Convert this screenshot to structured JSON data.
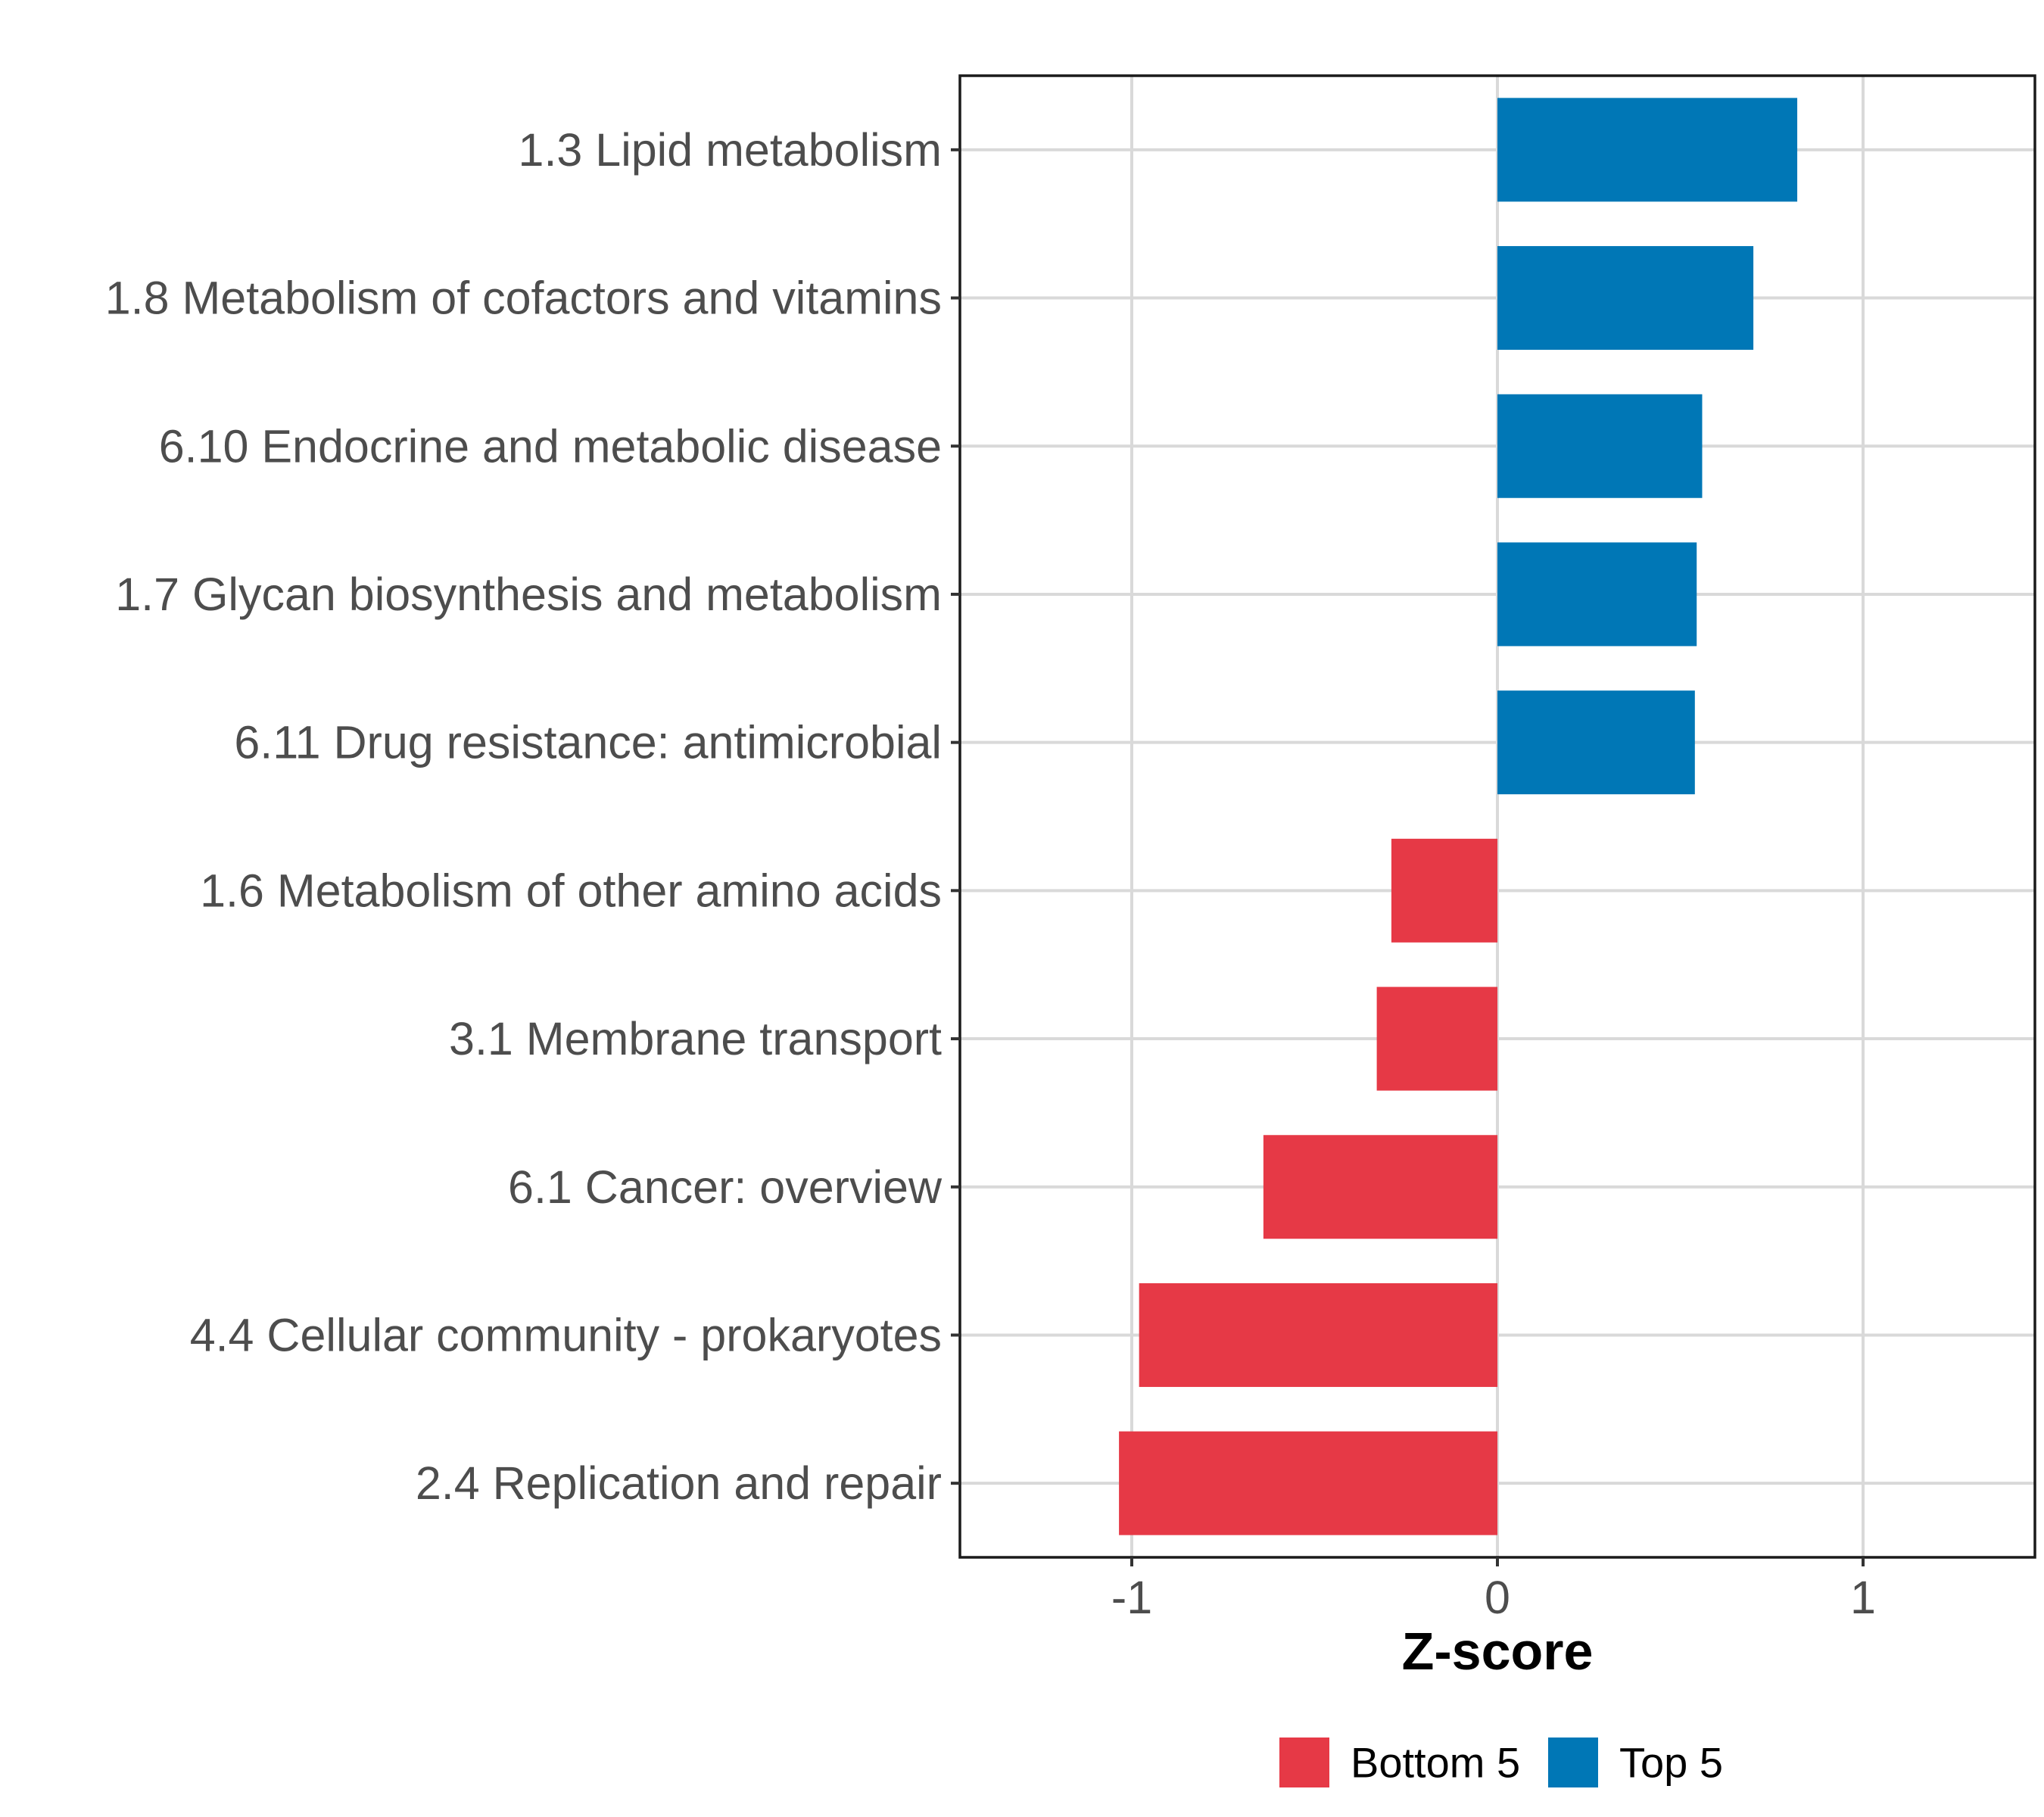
{
  "chart_data": {
    "type": "bar",
    "orientation": "horizontal",
    "xlabel": "Z-score",
    "ylabel": "",
    "xlim": [
      -1.47,
      1.47
    ],
    "xticks": [
      -1,
      0,
      1
    ],
    "xtick_labels": [
      "-1",
      "0",
      "1"
    ],
    "grid": true,
    "legend_position": "bottom",
    "categories": [
      "1.3 Lipid metabolism",
      "1.8 Metabolism of cofactors and vitamins",
      "6.10 Endocrine and metabolic disease",
      "1.7 Glycan biosynthesis and metabolism",
      "6.11 Drug resistance: antimicrobial",
      "1.6 Metabolism of other amino acids",
      "3.1 Membrane transport",
      "6.1 Cancer: overview",
      "4.4 Cellular community - prokaryotes",
      "2.4 Replication and repair"
    ],
    "values": [
      0.82,
      0.7,
      0.56,
      0.545,
      0.54,
      -0.29,
      -0.33,
      -0.64,
      -0.98,
      -1.035
    ],
    "groups": [
      "Top 5",
      "Top 5",
      "Top 5",
      "Top 5",
      "Top 5",
      "Bottom 5",
      "Bottom 5",
      "Bottom 5",
      "Bottom 5",
      "Bottom 5"
    ],
    "legend": [
      {
        "name": "Bottom 5",
        "color": "#e63946"
      },
      {
        "name": "Top 5",
        "color": "#0077b6"
      }
    ]
  }
}
